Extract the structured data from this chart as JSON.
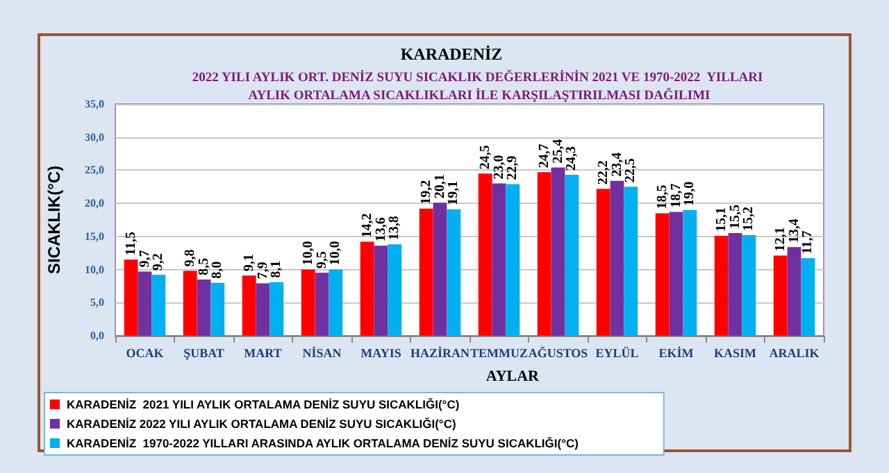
{
  "chart_data": {
    "type": "bar",
    "title": "KARADENİZ",
    "subtitle": "2022 YILI AYLIK ORT. DENİZ SUYU SICAKLIK DEĞERLERİNİN 2021 VE 1970-2022  YILLARI AYLIK ORTALAMA SICAKLIKLARI İLE KARŞILAŞTIRILMASI DAĞILIMI",
    "xlabel": "AYLAR",
    "ylabel": "SICAKLIK(°C)",
    "categories": [
      "OCAK",
      "ŞUBAT",
      "MART",
      "NİSAN",
      "MAYIS",
      "HAZİRAN",
      "TEMMUZ",
      "AĞUSTOS",
      "EYLÜL",
      "EKİM",
      "KASIM",
      "ARALIK"
    ],
    "series": [
      {
        "name": "KARADENİZ  2021 YILI AYLIK ORTALAMA DENİZ SUYU SICAKLIĞI(°C)",
        "color": "#ff0000",
        "values": [
          11.5,
          9.8,
          9.1,
          10.0,
          14.2,
          19.2,
          24.5,
          24.7,
          22.2,
          18.5,
          15.1,
          12.1
        ],
        "value_labels": [
          "11,5",
          "9,8",
          "9,1",
          "10,0",
          "14,2",
          "19,2",
          "24,5",
          "24,7",
          "22,2",
          "18,5",
          "15,1",
          "12,1"
        ]
      },
      {
        "name": "KARADENİZ 2022 YILI AYLIK ORTALAMA DENİZ SUYU SICAKLIĞI(°C)",
        "color": "#7030a0",
        "values": [
          9.7,
          8.5,
          7.9,
          9.5,
          13.6,
          20.1,
          23.0,
          25.4,
          23.4,
          18.7,
          15.5,
          13.4
        ],
        "value_labels": [
          "9,7",
          "8,5",
          "7,9",
          "9,5",
          "13,6",
          "20,1",
          "23,0",
          "25,4",
          "23,4",
          "18,7",
          "15,5",
          "13,4"
        ]
      },
      {
        "name": "KARADENİZ  1970-2022 YILLARI ARASINDA AYLIK ORTALAMA DENİZ SUYU SICAKLIĞI(°C)",
        "color": "#00b0f0",
        "values": [
          9.2,
          8.0,
          8.1,
          10.0,
          13.8,
          19.1,
          22.9,
          24.3,
          22.5,
          19.0,
          15.2,
          11.7
        ],
        "value_labels": [
          "9,2",
          "8,0",
          "8,1",
          "10,0",
          "13,8",
          "19,1",
          "22,9",
          "24,3",
          "22,5",
          "19,0",
          "15,2",
          "11,7"
        ]
      }
    ],
    "ylim": [
      0,
      35
    ],
    "yticks": [
      {
        "value": 0,
        "label": "0,0"
      },
      {
        "value": 5,
        "label": "5,0"
      },
      {
        "value": 10,
        "label": "10,0"
      },
      {
        "value": 15,
        "label": "15,0"
      },
      {
        "value": 20,
        "label": "20,0"
      },
      {
        "value": 25,
        "label": "25,0"
      },
      {
        "value": 30,
        "label": "30,0"
      },
      {
        "value": 35,
        "label": "35,0"
      }
    ],
    "grid": "y",
    "legend": "bottom left"
  }
}
